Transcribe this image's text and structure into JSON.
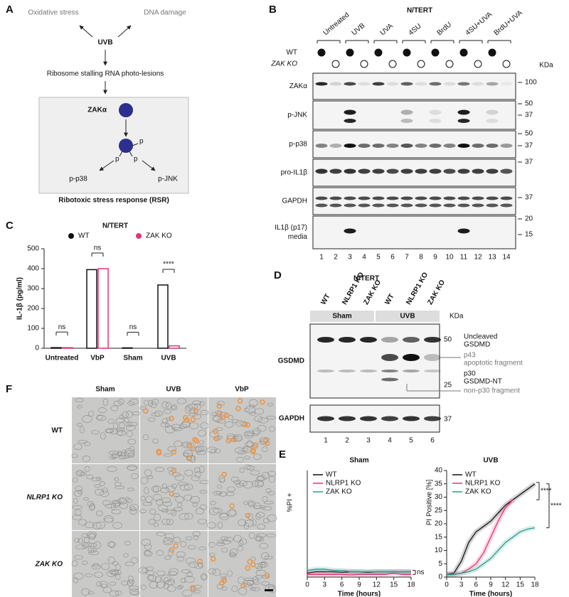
{
  "panels": {
    "A": {
      "letter": "A",
      "oxidative": "Oxidative stress",
      "dna": "DNA damage",
      "uvb": "UVB",
      "stalling": "Ribosome stalling RNA photo-lesions",
      "zak": "ZAKα",
      "p": [
        "p",
        "p",
        "p"
      ],
      "p38": "p-p38",
      "jnk": "p-JNK",
      "rsr": "Ribotoxic stress response (RSR)"
    },
    "B": {
      "letter": "B",
      "title": "N/TERT",
      "groups": [
        "Untreated",
        "UVB",
        "UVA",
        "4SU",
        "BrdU",
        "4SU+UVA",
        "BrdU+UVA"
      ],
      "rows": [
        "WT",
        "ZAK KO"
      ],
      "kda": "KDa",
      "blots": [
        {
          "label": [
            "ZAKα"
          ],
          "markers": [
            "100"
          ]
        },
        {
          "label": [
            "p-JNK"
          ],
          "markers": [
            "50",
            "37"
          ]
        },
        {
          "label": [
            "p-p38"
          ],
          "markers": [
            "50",
            "37"
          ]
        },
        {
          "label": [
            "pro-IL1β"
          ],
          "markers": [
            "37"
          ]
        },
        {
          "label": [
            "GAPDH"
          ],
          "markers": [
            "37"
          ]
        },
        {
          "label": [
            "IL1β (p17)",
            "media"
          ],
          "markers": [
            "20",
            "15"
          ]
        }
      ],
      "lanes": [
        "1",
        "2",
        "3",
        "4",
        "5",
        "6",
        "7",
        "8",
        "9",
        "10",
        "11",
        "12",
        "13",
        "14"
      ]
    },
    "C": {
      "letter": "C"
    },
    "D": {
      "letter": "D",
      "title": "N/TERT",
      "lanes": [
        "WT",
        "NLRP1 KO",
        "ZAK KO",
        "WT",
        "NLRP1 KO",
        "ZAK KO"
      ],
      "groups": [
        "Sham",
        "UVB"
      ],
      "kda": "KDa",
      "blots": [
        {
          "label": "GSDMD",
          "markers": [
            "50",
            "25"
          ]
        },
        {
          "label": "GAPDH",
          "markers": [
            "37"
          ]
        }
      ],
      "annotations": [
        [
          "Uncleaved",
          "GSDMD"
        ],
        [
          "p43",
          "apoptotic fragment"
        ],
        [
          "p30",
          "GSDMD-NT"
        ],
        [
          "non-p30 fragment"
        ]
      ],
      "lane_numbers": [
        "1",
        "2",
        "3",
        "4",
        "5",
        "6"
      ]
    },
    "E": {
      "letter": "E"
    },
    "F": {
      "letter": "F",
      "columns": [
        "Sham",
        "UVB",
        "VbP"
      ],
      "rows": [
        "WT",
        "NLRP1 KO",
        "ZAK KO"
      ]
    }
  },
  "chart_data": [
    {
      "type": "bar",
      "title": "N/TERT",
      "ylabel": "IL-1β (pg/ml)",
      "categories": [
        "Untreated",
        "VbP",
        "Sham",
        "UVB"
      ],
      "series": [
        {
          "name": "WT",
          "color": "#111111",
          "values": [
            3,
            395,
            2,
            318
          ]
        },
        {
          "name": "ZAK KO",
          "color": "#e0337a",
          "values": [
            3,
            400,
            0,
            12
          ]
        }
      ],
      "ylim": [
        0,
        500
      ],
      "yticks": [
        0,
        100,
        200,
        300,
        400,
        500
      ],
      "annotations": [
        "ns",
        "ns",
        "ns",
        "****"
      ]
    },
    {
      "type": "line",
      "title": "Sham",
      "ylabel": "%PI +",
      "xlabel": "Time (hours)",
      "x": [
        0,
        1.5,
        3,
        4.5,
        6,
        7.5,
        9,
        10.5,
        12,
        13.5,
        15,
        16.5,
        18
      ],
      "xlim": [
        0,
        18
      ],
      "ylim": [
        0,
        40
      ],
      "xticks": [
        0,
        3,
        6,
        9,
        12,
        15,
        18
      ],
      "series": [
        {
          "name": "WT",
          "color": "#111111",
          "values": [
            1.5,
            2,
            2,
            2,
            1.8,
            2,
            2,
            1.8,
            2,
            2,
            2,
            2,
            2
          ]
        },
        {
          "name": "NLRP1 KO",
          "color": "#e8336f",
          "values": [
            1,
            1,
            1,
            1,
            1,
            0.8,
            1,
            1,
            1,
            1,
            1.5,
            1,
            1
          ]
        },
        {
          "name": "ZAK KO",
          "color": "#2a9d8f",
          "values": [
            2.5,
            3,
            3,
            2.5,
            2.5,
            2,
            2,
            2,
            2,
            2,
            2,
            2,
            2
          ]
        }
      ],
      "annotations": [
        "ns"
      ]
    },
    {
      "type": "line",
      "title": "UVB",
      "ylabel": "PI Positive [%]",
      "xlabel": "Time (hours)",
      "x": [
        0,
        1.5,
        3,
        4.5,
        6,
        7.5,
        9,
        10.5,
        12,
        13.5,
        15,
        16.5,
        18
      ],
      "xlim": [
        0,
        18
      ],
      "ylim": [
        0,
        40
      ],
      "xticks": [
        0,
        3,
        6,
        9,
        12,
        15,
        18
      ],
      "yticks": [
        0,
        5,
        10,
        15,
        20,
        25,
        30,
        35,
        40
      ],
      "series": [
        {
          "name": "WT",
          "color": "#111111",
          "values": [
            1,
            1.5,
            6,
            13,
            17,
            19,
            21,
            24,
            27,
            29,
            31,
            33,
            35
          ]
        },
        {
          "name": "NLRP1 KO",
          "color": "#e8336f",
          "values": [
            1,
            1,
            1.5,
            3,
            5,
            9,
            15,
            21,
            26,
            29,
            null,
            null,
            null
          ]
        },
        {
          "name": "ZAK KO",
          "color": "#2a9d8f",
          "values": [
            1,
            1,
            1.5,
            2,
            3,
            5,
            7,
            10,
            13,
            15,
            17,
            18,
            18.5
          ]
        }
      ],
      "annotations": [
        "****",
        "****"
      ]
    }
  ]
}
